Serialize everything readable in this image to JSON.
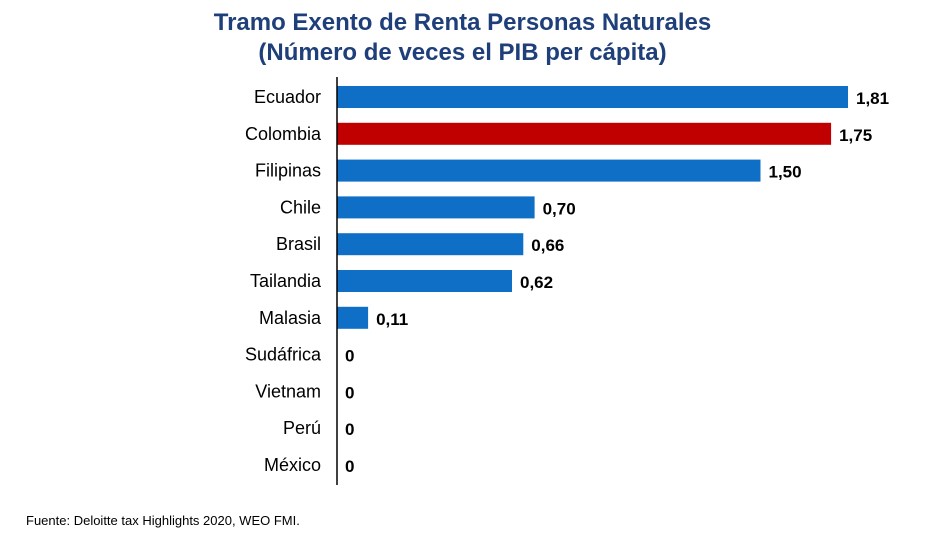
{
  "chart_data": {
    "type": "bar",
    "orientation": "horizontal",
    "title": "Tramo Exento de Renta Personas Naturales",
    "subtitle": "(Número de veces el PIB per cápita)",
    "categories": [
      "Ecuador",
      "Colombia",
      "Filipinas",
      "Chile",
      "Brasil",
      "Tailandia",
      "Malasia",
      "Sudáfrica",
      "Vietnam",
      "Perú",
      "México"
    ],
    "values": [
      1.81,
      1.75,
      1.5,
      0.7,
      0.66,
      0.62,
      0.11,
      0,
      0,
      0,
      0
    ],
    "value_labels": [
      "1,81",
      "1,75",
      "1,50",
      "0,70",
      "0,66",
      "0,62",
      "0,11",
      "0",
      "0",
      "0",
      "0"
    ],
    "xlim": [
      0,
      1.81
    ],
    "grid": false,
    "legend": "none",
    "colors": {
      "default": "#0f6fc6",
      "highlight": "#c00000",
      "title": "#1f3f7a"
    },
    "highlight_category": "Colombia"
  },
  "source_note": "Fuente: Deloitte tax Highlights 2020, WEO FMI."
}
